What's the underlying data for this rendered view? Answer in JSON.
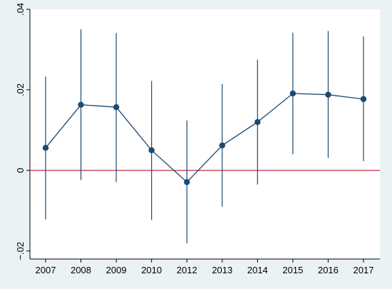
{
  "chart_data": {
    "type": "line",
    "title": "",
    "xlabel": "",
    "ylabel": "",
    "categories": [
      "2007",
      "2008",
      "2009",
      "2010",
      "2012",
      "2013",
      "2014",
      "2015",
      "2016",
      "2017"
    ],
    "series": [
      {
        "values": [
          0.0056,
          0.0163,
          0.0157,
          0.005,
          -0.0029,
          0.0062,
          0.012,
          0.0191,
          0.0188,
          0.0177
        ],
        "ci_lower": [
          -0.0122,
          -0.0024,
          -0.0029,
          -0.0123,
          -0.0181,
          -0.009,
          -0.0035,
          0.004,
          0.0031,
          0.0023
        ],
        "ci_upper": [
          0.0233,
          0.035,
          0.0341,
          0.0222,
          0.0124,
          0.0214,
          0.0275,
          0.0342,
          0.0346,
          0.0333
        ]
      }
    ],
    "ylim": [
      -0.022,
      0.04
    ],
    "yticks": [
      {
        "value": -0.02,
        "label": "−.02"
      },
      {
        "value": 0,
        "label": "0"
      },
      {
        "value": 0.02,
        "label": ".02"
      },
      {
        "value": 0.04,
        "label": ".04"
      }
    ],
    "reference_line": {
      "value": 0,
      "color": "#c0142c"
    },
    "colors": {
      "series": "#1a4a72",
      "plot_background": "#ffffff",
      "page_background": "#eaf2f3",
      "axis": "#000000"
    },
    "grid": false,
    "legend": "none"
  }
}
